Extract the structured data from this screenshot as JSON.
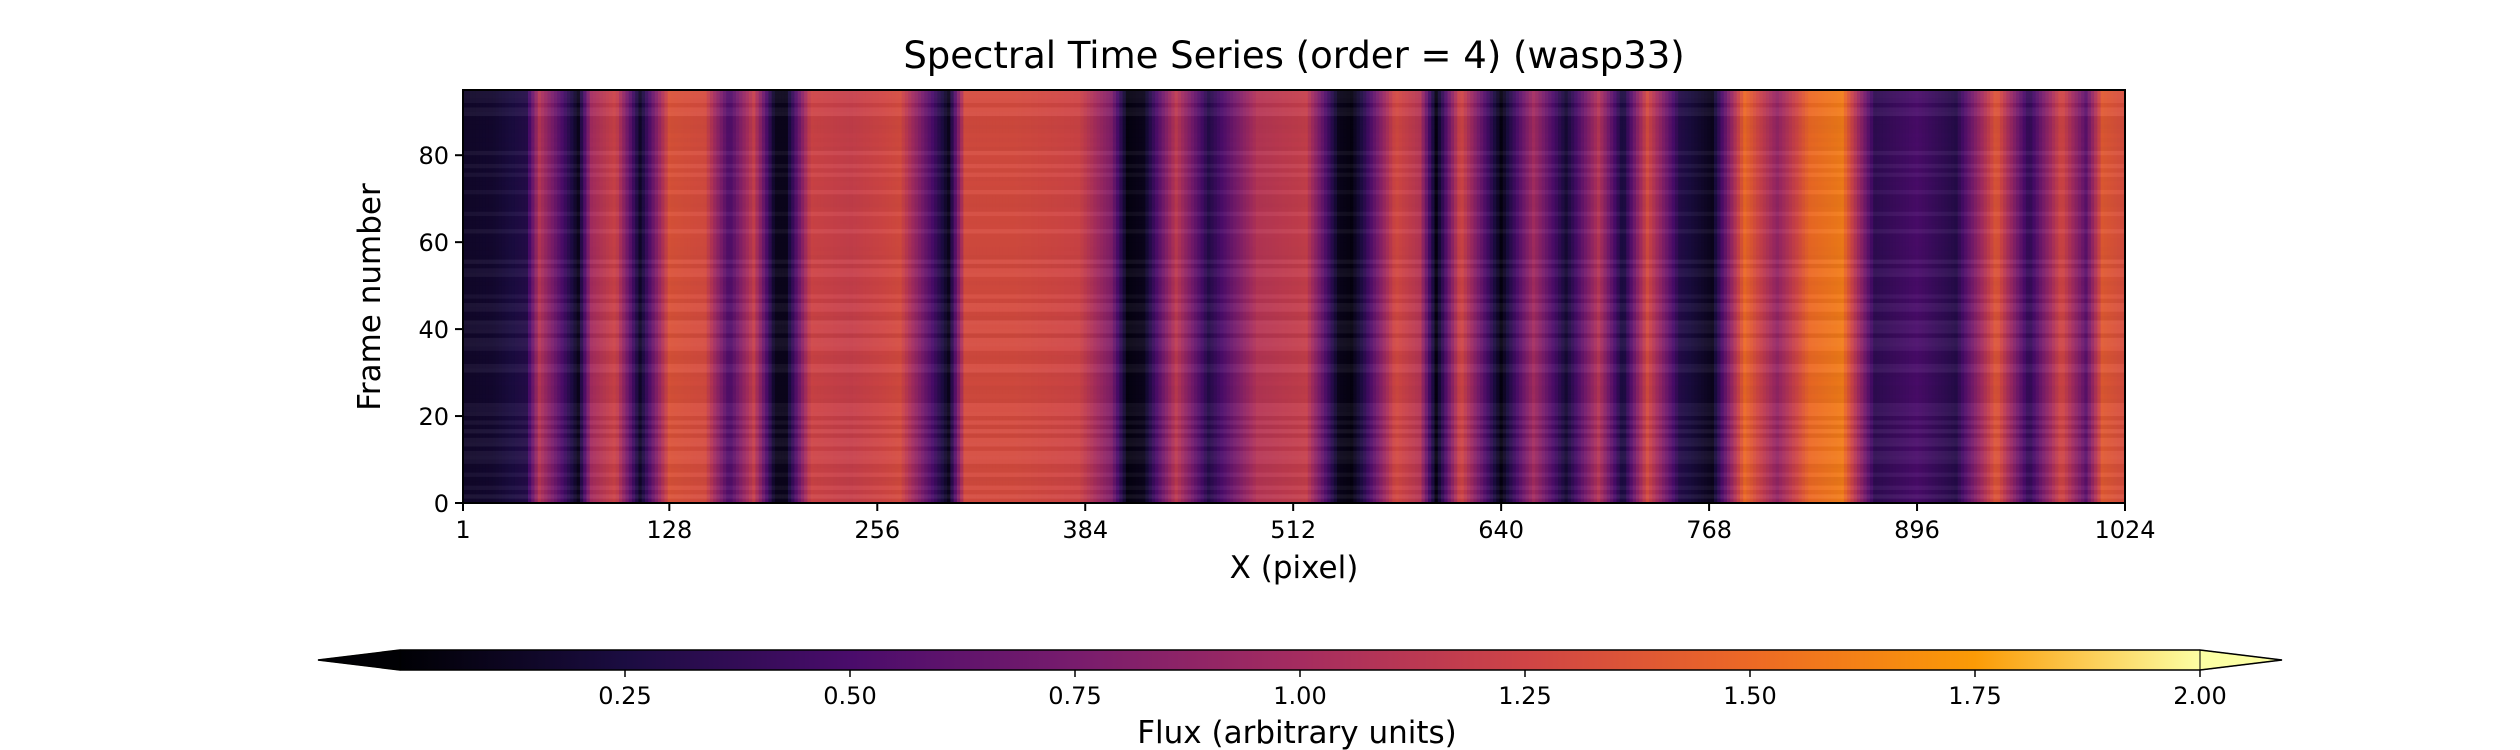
{
  "chart_data": {
    "type": "heatmap",
    "title": "Spectral Time Series (order = 4) (wasp33)",
    "xlabel": "X (pixel)",
    "ylabel": "Frame number",
    "xlim": [
      1,
      1024
    ],
    "ylim": [
      0,
      95
    ],
    "xticks": [
      1,
      128,
      256,
      384,
      512,
      640,
      768,
      896,
      1024
    ],
    "yticks": [
      0,
      20,
      40,
      60,
      80
    ],
    "colormap": "inferno",
    "colorbar": {
      "label": "Flux (arbitrary units)",
      "range": [
        0.0,
        2.0
      ],
      "ticks": [
        "0.25",
        "0.50",
        "0.75",
        "1.00",
        "1.25",
        "1.50",
        "1.75",
        "2.00"
      ],
      "extend": "both",
      "orientation": "horizontal",
      "placement": "bottom"
    },
    "profile": {
      "description_units": "pixel → typical flux level across frames",
      "x": [
        1,
        20,
        40,
        48,
        60,
        72,
        80,
        95,
        110,
        128,
        150,
        165,
        180,
        193,
        200,
        215,
        240,
        270,
        300,
        310,
        340,
        380,
        400,
        410,
        420,
        440,
        460,
        490,
        520,
        540,
        548,
        555,
        575,
        590,
        600,
        615,
        640,
        660,
        680,
        700,
        715,
        730,
        750,
        770,
        790,
        810,
        830,
        850,
        870,
        896,
        920,
        945,
        965,
        985,
        1000,
        1010,
        1024
      ],
      "flux": [
        0.15,
        0.18,
        0.3,
        1.1,
        0.6,
        0.1,
        1.0,
        1.25,
        0.15,
        1.35,
        1.3,
        0.5,
        1.2,
        0.1,
        0.1,
        1.25,
        1.2,
        1.3,
        0.1,
        1.3,
        1.3,
        1.25,
        0.8,
        0.05,
        0.1,
        1.15,
        0.3,
        1.1,
        1.2,
        0.1,
        0.05,
        0.3,
        1.3,
        1.1,
        0.05,
        1.3,
        0.05,
        1.0,
        0.2,
        1.1,
        0.2,
        1.3,
        0.3,
        0.1,
        1.5,
        0.9,
        1.5,
        1.6,
        0.35,
        0.5,
        0.3,
        1.4,
        0.35,
        1.3,
        0.6,
        1.4,
        1.3
      ]
    }
  }
}
